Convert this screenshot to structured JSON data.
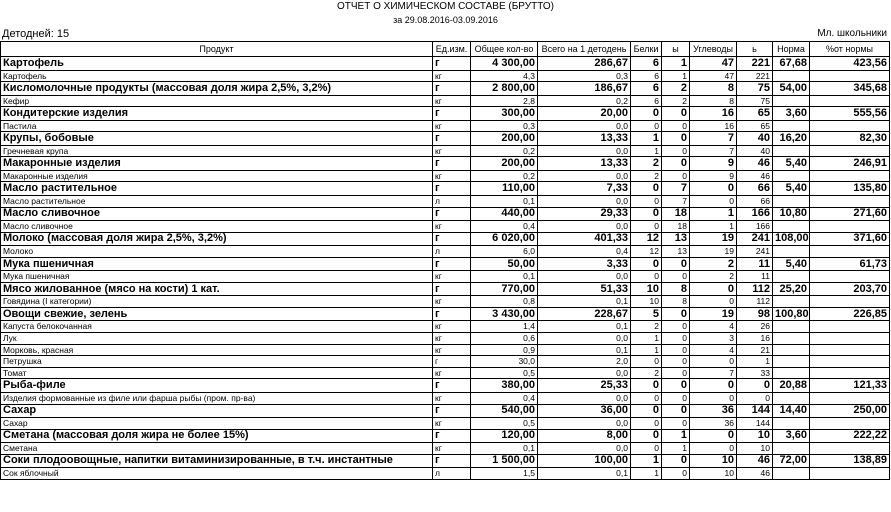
{
  "header": {
    "title": "ОТЧЕТ О ХИМИЧЕСКОМ СОСТАВЕ (БРУТТО)",
    "subtitle": "за 29.08.2016-03.09.2016",
    "days": "Детодней: 15",
    "group": "Мл. школьники"
  },
  "table": {
    "columns": [
      "Продукт",
      "Ед.изм.",
      "Общее кол-во",
      "Всего на 1 детодень",
      "Белки",
      "ы",
      "Углеводы",
      "ь",
      "Норма",
      "%от нормы"
    ],
    "groups": [
      {
        "cells": [
          "Картофель",
          "г",
          "4 300,00",
          "286,67",
          "6",
          "1",
          "47",
          "221",
          "67,68",
          "423,56"
        ],
        "items": [
          [
            "Картофель",
            "кг",
            "4,3",
            "0,3",
            "6",
            "1",
            "47",
            "221"
          ]
        ]
      },
      {
        "cells": [
          "Кисломолочные продукты (массовая доля жира 2,5%, 3,2%)",
          "г",
          "2 800,00",
          "186,67",
          "6",
          "2",
          "8",
          "75",
          "54,00",
          "345,68"
        ],
        "items": [
          [
            "Кефир",
            "кг",
            "2,8",
            "0,2",
            "6",
            "2",
            "8",
            "75"
          ]
        ]
      },
      {
        "cells": [
          "Кондитерские изделия",
          "г",
          "300,00",
          "20,00",
          "0",
          "0",
          "16",
          "65",
          "3,60",
          "555,56"
        ],
        "items": [
          [
            "Пастила",
            "кг",
            "0,3",
            "0,0",
            "0",
            "0",
            "16",
            "65"
          ]
        ]
      },
      {
        "cells": [
          "Крупы, бобовые",
          "г",
          "200,00",
          "13,33",
          "1",
          "0",
          "7",
          "40",
          "16,20",
          "82,30"
        ],
        "items": [
          [
            "Гречневая крупа",
            "кг",
            "0,2",
            "0,0",
            "1",
            "0",
            "7",
            "40"
          ]
        ]
      },
      {
        "cells": [
          "Макаронные изделия",
          "г",
          "200,00",
          "13,33",
          "2",
          "0",
          "9",
          "46",
          "5,40",
          "246,91"
        ],
        "items": [
          [
            "Макаронные изделия",
            "кг",
            "0,2",
            "0,0",
            "2",
            "0",
            "9",
            "46"
          ]
        ]
      },
      {
        "cells": [
          "Масло растительное",
          "г",
          "110,00",
          "7,33",
          "0",
          "7",
          "0",
          "66",
          "5,40",
          "135,80"
        ],
        "items": [
          [
            "Масло растительное",
            "л",
            "0,1",
            "0,0",
            "0",
            "7",
            "0",
            "66"
          ]
        ]
      },
      {
        "cells": [
          "Масло сливочное",
          "г",
          "440,00",
          "29,33",
          "0",
          "18",
          "1",
          "166",
          "10,80",
          "271,60"
        ],
        "items": [
          [
            "Масло сливочное",
            "кг",
            "0,4",
            "0,0",
            "0",
            "18",
            "1",
            "166"
          ]
        ]
      },
      {
        "cells": [
          "Молоко (массовая доля жира 2,5%, 3,2%)",
          "г",
          "6 020,00",
          "401,33",
          "12",
          "13",
          "19",
          "241",
          "108,00",
          "371,60"
        ],
        "items": [
          [
            "Молоко",
            "л",
            "6,0",
            "0,4",
            "12",
            "13",
            "19",
            "241"
          ]
        ]
      },
      {
        "cells": [
          "Мука пшеничная",
          "г",
          "50,00",
          "3,33",
          "0",
          "0",
          "2",
          "11",
          "5,40",
          "61,73"
        ],
        "items": [
          [
            "Мука пшеничная",
            "кг",
            "0,1",
            "0,0",
            "0",
            "0",
            "2",
            "11"
          ]
        ]
      },
      {
        "cells": [
          "Мясо жилованное (мясо на кости) 1 кат.",
          "г",
          "770,00",
          "51,33",
          "10",
          "8",
          "0",
          "112",
          "25,20",
          "203,70"
        ],
        "items": [
          [
            "Говядина (I категории)",
            "кг",
            "0,8",
            "0,1",
            "10",
            "8",
            "0",
            "112"
          ]
        ]
      },
      {
        "cells": [
          "Овощи свежие, зелень",
          "г",
          "3 430,00",
          "228,67",
          "5",
          "0",
          "19",
          "98",
          "100,80",
          "226,85"
        ],
        "items": [
          [
            "Капуста белокочанная",
            "кг",
            "1,4",
            "0,1",
            "2",
            "0",
            "4",
            "26"
          ],
          [
            "Лук",
            "кг",
            "0,6",
            "0,0",
            "1",
            "0",
            "3",
            "16"
          ],
          [
            "Морковь, красная",
            "кг",
            "0,9",
            "0,1",
            "1",
            "0",
            "4",
            "21"
          ],
          [
            "Петрушка",
            "г",
            "30,0",
            "2,0",
            "0",
            "0",
            "0",
            "1"
          ],
          [
            "Томат",
            "кг",
            "0,5",
            "0,0",
            "2",
            "0",
            "7",
            "33"
          ]
        ]
      },
      {
        "cells": [
          "Рыба-филе",
          "г",
          "380,00",
          "25,33",
          "0",
          "0",
          "0",
          "0",
          "20,88",
          "121,33"
        ],
        "items": [
          [
            "Изделия формованные из филе или фарша рыбы (пром. пр-ва)",
            "кг",
            "0,4",
            "0,0",
            "0",
            "0",
            "0",
            "0"
          ]
        ]
      },
      {
        "cells": [
          "Сахар",
          "г",
          "540,00",
          "36,00",
          "0",
          "0",
          "36",
          "144",
          "14,40",
          "250,00"
        ],
        "items": [
          [
            "Сахар",
            "кг",
            "0,5",
            "0,0",
            "0",
            "0",
            "36",
            "144"
          ]
        ]
      },
      {
        "cells": [
          "Сметана (массовая доля жира не более 15%)",
          "г",
          "120,00",
          "8,00",
          "0",
          "1",
          "0",
          "10",
          "3,60",
          "222,22"
        ],
        "items": [
          [
            "Сметана",
            "кг",
            "0,1",
            "0,0",
            "0",
            "1",
            "0",
            "10"
          ]
        ]
      },
      {
        "cells": [
          "Соки плодоовощные, напитки витаминизированные, в т.ч. инстантные",
          "г",
          "1 500,00",
          "100,00",
          "1",
          "0",
          "10",
          "46",
          "72,00",
          "138,89"
        ],
        "items": [
          [
            "Сок яблочный",
            "л",
            "1,5",
            "0,1",
            "1",
            "0",
            "10",
            "46"
          ]
        ]
      }
    ]
  }
}
